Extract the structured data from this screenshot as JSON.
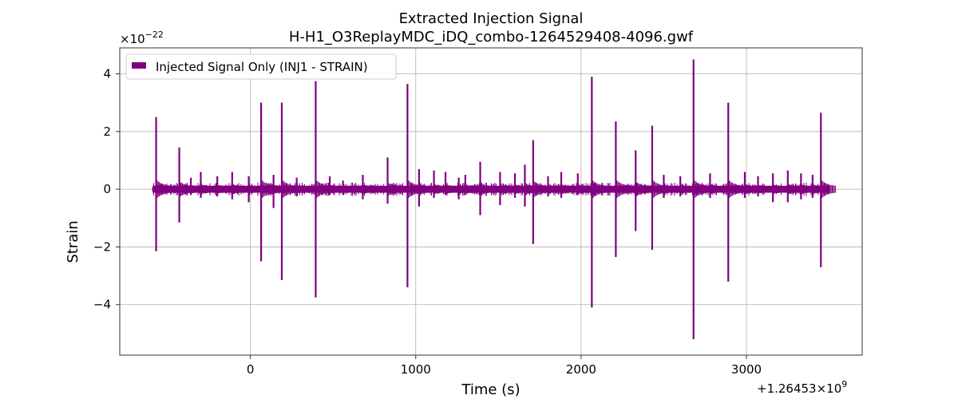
{
  "chart_data": {
    "type": "line",
    "title": "Extracted Injection Signal",
    "subtitle": "H-H1_O3ReplayMDC_iDQ_combo-1264529408-4096.gwf",
    "xlabel": "Time (s)",
    "ylabel": "Strain",
    "y_exponent_label": "×10",
    "y_exponent_power": "−22",
    "x_offset_label": "+1.26453×10",
    "x_offset_power": "9",
    "xlim": [
      -790,
      3700
    ],
    "ylim": [
      -5.75,
      4.9
    ],
    "x_ticks": [
      {
        "value": 0,
        "label": "0"
      },
      {
        "value": 1000,
        "label": "1000"
      },
      {
        "value": 2000,
        "label": "2000"
      },
      {
        "value": 3000,
        "label": "3000"
      }
    ],
    "y_ticks": [
      {
        "value": -4,
        "label": "−4"
      },
      {
        "value": -2,
        "label": "−2"
      },
      {
        "value": 0,
        "label": "0"
      },
      {
        "value": 2,
        "label": "2"
      },
      {
        "value": 4,
        "label": "4"
      }
    ],
    "grid": true,
    "legend_position": "top-left",
    "series": [
      {
        "name": "Injected Signal Only (INJ1 - STRAIN)",
        "color": "#800080",
        "time_range": [
          -592,
          3504
        ],
        "baseline_band": [
          -0.12,
          0.12
        ],
        "spikes": [
          {
            "x": -570,
            "ymax": 2.5,
            "ymin": -2.15
          },
          {
            "x": -430,
            "ymax": 1.45,
            "ymin": -1.15
          },
          {
            "x": -360,
            "ymax": 0.4,
            "ymin": -0.2
          },
          {
            "x": -300,
            "ymax": 0.6,
            "ymin": -0.3
          },
          {
            "x": -200,
            "ymax": 0.45,
            "ymin": -0.25
          },
          {
            "x": -110,
            "ymax": 0.6,
            "ymin": -0.35
          },
          {
            "x": -10,
            "ymax": 0.45,
            "ymin": -0.45
          },
          {
            "x": 65,
            "ymax": 3.0,
            "ymin": -2.5
          },
          {
            "x": 140,
            "ymax": 0.5,
            "ymin": -0.65
          },
          {
            "x": 190,
            "ymax": 3.0,
            "ymin": -3.15
          },
          {
            "x": 280,
            "ymax": 0.4,
            "ymin": -0.25
          },
          {
            "x": 395,
            "ymax": 3.75,
            "ymin": -3.75
          },
          {
            "x": 480,
            "ymax": 0.45,
            "ymin": -0.2
          },
          {
            "x": 560,
            "ymax": 0.3,
            "ymin": -0.2
          },
          {
            "x": 680,
            "ymax": 0.5,
            "ymin": -0.35
          },
          {
            "x": 830,
            "ymax": 1.1,
            "ymin": -0.5
          },
          {
            "x": 950,
            "ymax": 3.65,
            "ymin": -3.4
          },
          {
            "x": 1020,
            "ymax": 0.7,
            "ymin": -0.6
          },
          {
            "x": 1110,
            "ymax": 0.65,
            "ymin": -0.3
          },
          {
            "x": 1180,
            "ymax": 0.6,
            "ymin": -0.2
          },
          {
            "x": 1260,
            "ymax": 0.4,
            "ymin": -0.35
          },
          {
            "x": 1300,
            "ymax": 0.5,
            "ymin": -0.2
          },
          {
            "x": 1390,
            "ymax": 0.95,
            "ymin": -0.9
          },
          {
            "x": 1510,
            "ymax": 0.6,
            "ymin": -0.55
          },
          {
            "x": 1600,
            "ymax": 0.55,
            "ymin": -0.3
          },
          {
            "x": 1660,
            "ymax": 0.85,
            "ymin": -0.6
          },
          {
            "x": 1710,
            "ymax": 1.7,
            "ymin": -1.9
          },
          {
            "x": 1800,
            "ymax": 0.45,
            "ymin": -0.25
          },
          {
            "x": 1880,
            "ymax": 0.6,
            "ymin": -0.3
          },
          {
            "x": 1980,
            "ymax": 0.55,
            "ymin": -0.2
          },
          {
            "x": 2065,
            "ymax": 3.9,
            "ymin": -4.1
          },
          {
            "x": 2210,
            "ymax": 2.35,
            "ymin": -2.35
          },
          {
            "x": 2330,
            "ymax": 1.35,
            "ymin": -1.45
          },
          {
            "x": 2430,
            "ymax": 2.2,
            "ymin": -2.1
          },
          {
            "x": 2500,
            "ymax": 0.5,
            "ymin": -0.3
          },
          {
            "x": 2600,
            "ymax": 0.45,
            "ymin": -0.25
          },
          {
            "x": 2680,
            "ymax": 4.5,
            "ymin": -5.2
          },
          {
            "x": 2780,
            "ymax": 0.55,
            "ymin": -0.3
          },
          {
            "x": 2890,
            "ymax": 3.0,
            "ymin": -3.2
          },
          {
            "x": 2990,
            "ymax": 0.6,
            "ymin": -0.3
          },
          {
            "x": 3070,
            "ymax": 0.45,
            "ymin": -0.25
          },
          {
            "x": 3160,
            "ymax": 0.55,
            "ymin": -0.45
          },
          {
            "x": 3250,
            "ymax": 0.65,
            "ymin": -0.45
          },
          {
            "x": 3330,
            "ymax": 0.55,
            "ymin": -0.35
          },
          {
            "x": 3400,
            "ymax": 0.5,
            "ymin": -0.3
          },
          {
            "x": 3450,
            "ymax": 2.65,
            "ymin": -2.7
          }
        ]
      }
    ]
  }
}
